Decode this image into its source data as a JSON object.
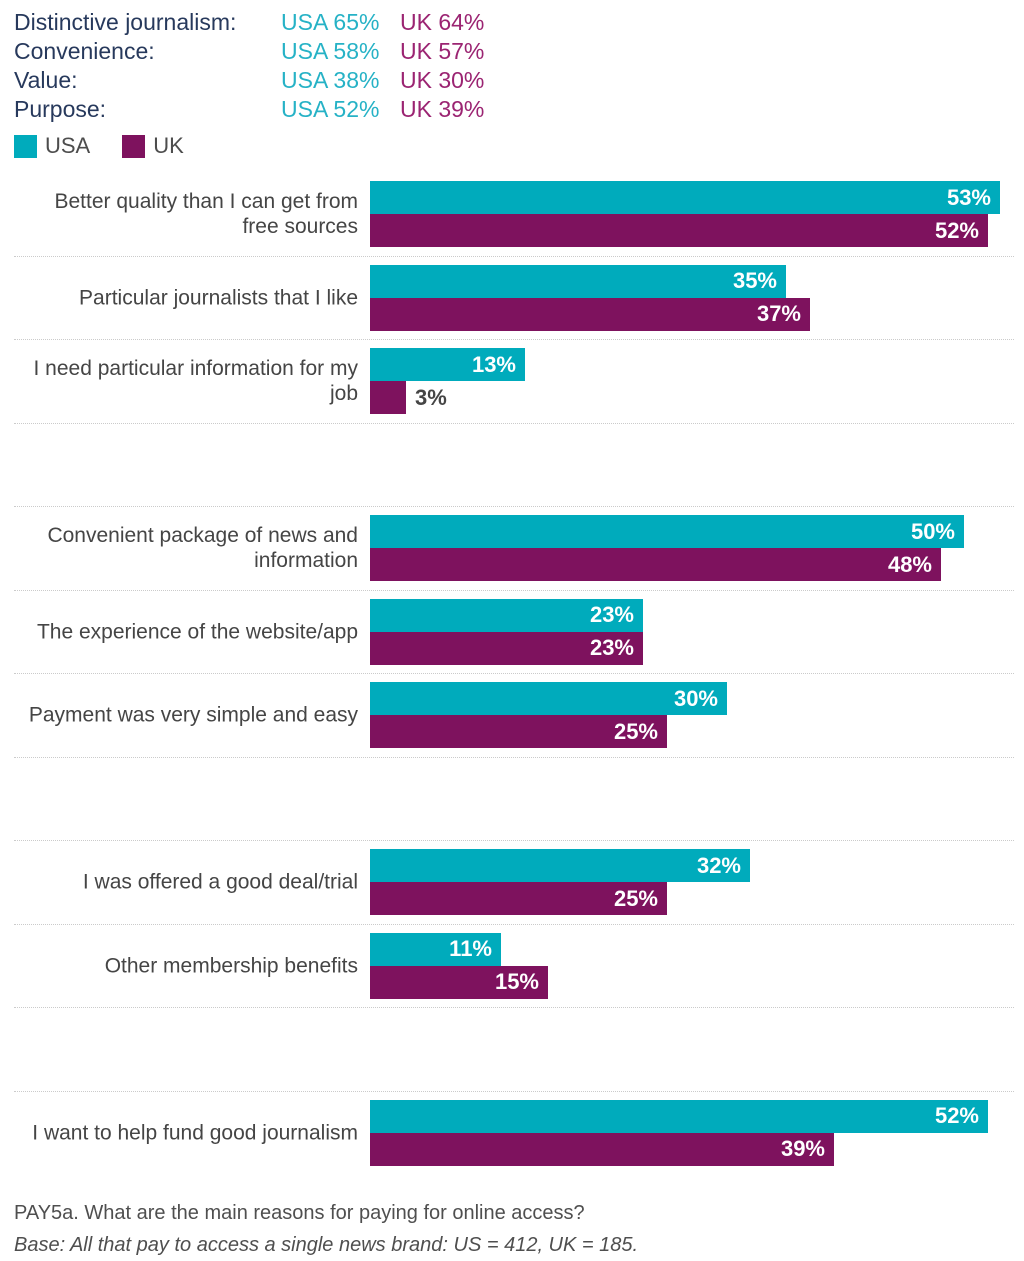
{
  "colors": {
    "usa": "#00ABBC",
    "uk": "#7E125E",
    "usa_text": "#26B2C6",
    "uk_text": "#9B2472",
    "navy": "#27395C"
  },
  "summary": {
    "rows": [
      {
        "label": "Distinctive journalism:",
        "usa": "USA 65%",
        "uk": "UK 64%"
      },
      {
        "label": "Convenience:",
        "usa": "USA 58%",
        "uk": "UK 57%"
      },
      {
        "label": "Value:",
        "usa": "USA 38%",
        "uk": "UK 30%"
      },
      {
        "label": "Purpose:",
        "usa": "USA 52%",
        "uk": "UK 39%"
      }
    ]
  },
  "legend": {
    "usa_label": "USA",
    "uk_label": "UK"
  },
  "chart_data": {
    "type": "bar",
    "orientation": "horizontal",
    "unit": "%",
    "title": "PAY5a. What are the main reasons for paying for online access?",
    "categories": [
      "Better quality than I can get from free sources",
      "Particular journalists that I like",
      "I need particular information for my job",
      "Convenient package of news and information",
      "The experience of the website/app",
      "Payment was very simple and easy",
      "I was offered a good deal/trial",
      "Other membership benefits",
      "I want to help fund good journalism"
    ],
    "series": [
      {
        "name": "USA",
        "values": [
          53,
          35,
          13,
          50,
          23,
          30,
          32,
          11,
          52
        ]
      },
      {
        "name": "UK",
        "values": [
          52,
          37,
          3,
          48,
          23,
          25,
          25,
          15,
          39
        ]
      }
    ],
    "groups": [
      [
        0,
        1,
        2
      ],
      [
        3,
        4,
        5
      ],
      [
        6,
        7
      ],
      [
        8
      ]
    ],
    "xlim": [
      0,
      54
    ],
    "grid": false,
    "legend_position": "top-left",
    "value_labels": "on-bars"
  },
  "footer": {
    "question": "PAY5a. What are the main reasons for paying for online access?",
    "base": "Base: All that pay to access a single news brand: US = 412, UK = 185."
  }
}
